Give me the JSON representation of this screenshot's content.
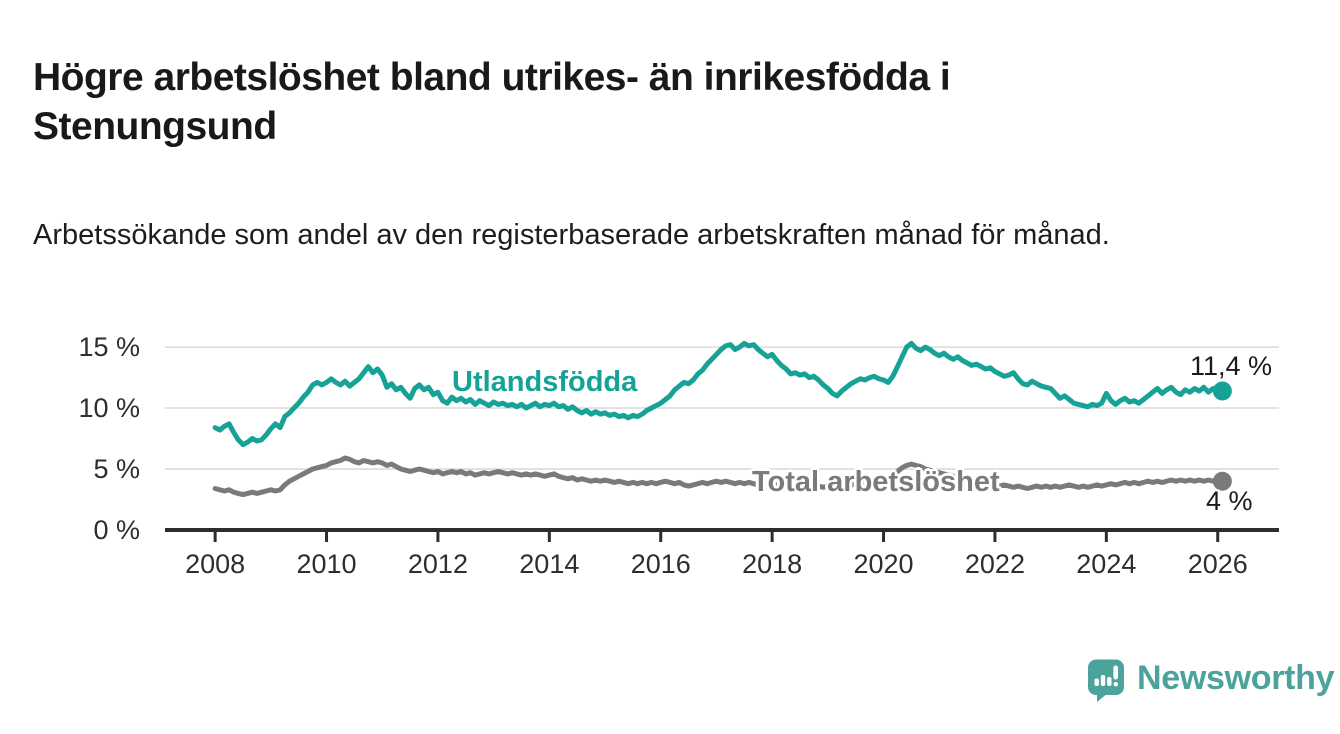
{
  "page": {
    "background": "#ffffff"
  },
  "header": {
    "title": "Högre arbetslöshet bland utrikes- än inrikesfödda i Stenungsund",
    "subtitle": "Arbetssökande som andel av den registerbaserade arbetskraften månad för månad."
  },
  "chart_data": {
    "type": "line",
    "title": "Högre arbetslöshet bland utrikes- än inrikesfödda i Stenungsund",
    "subtitle": "Arbetssökande som andel av den registerbaserade arbetskraften månad för månad.",
    "grid": "horizontal",
    "legend": "inline-series-labels",
    "frequency": "monthly",
    "x_start": 2008.0,
    "x_step": 0.0833333,
    "x_axis": {
      "ticks": [
        2008,
        2010,
        2012,
        2014,
        2016,
        2018,
        2020,
        2022,
        2024,
        2026
      ],
      "range": [
        2007.1,
        2027.1
      ]
    },
    "y_axis": {
      "unit": "%",
      "tick_values": [
        0,
        5,
        10,
        15
      ],
      "tick_labels": [
        "0 %",
        "5 %",
        "10 %",
        "15 %"
      ],
      "range": [
        0,
        16.4
      ]
    },
    "series": [
      {
        "name": "Utlandsfödda",
        "color": "#16a296",
        "end_value": 11.4,
        "end_label": "11,4 %",
        "values": [
          8.4,
          8.2,
          8.5,
          8.7,
          8.0,
          7.4,
          7.0,
          7.2,
          7.5,
          7.3,
          7.4,
          7.8,
          8.3,
          8.7,
          8.4,
          9.3,
          9.6,
          10.0,
          10.4,
          10.9,
          11.3,
          11.9,
          12.1,
          11.9,
          12.1,
          12.4,
          12.1,
          11.9,
          12.2,
          11.8,
          12.1,
          12.4,
          12.9,
          13.4,
          12.9,
          13.2,
          12.7,
          11.7,
          12.0,
          11.5,
          11.7,
          11.2,
          10.8,
          11.6,
          11.9,
          11.5,
          11.7,
          11.1,
          11.3,
          10.6,
          10.4,
          10.9,
          10.6,
          10.8,
          10.5,
          10.7,
          10.3,
          10.6,
          10.4,
          10.2,
          10.5,
          10.3,
          10.4,
          10.2,
          10.3,
          10.1,
          10.3,
          10.0,
          10.2,
          10.4,
          10.1,
          10.3,
          10.2,
          10.4,
          10.1,
          10.2,
          9.9,
          10.1,
          9.8,
          9.6,
          9.8,
          9.5,
          9.7,
          9.5,
          9.6,
          9.4,
          9.5,
          9.3,
          9.4,
          9.2,
          9.4,
          9.3,
          9.5,
          9.8,
          10.0,
          10.2,
          10.4,
          10.7,
          11.0,
          11.5,
          11.8,
          12.1,
          12.0,
          12.3,
          12.8,
          13.1,
          13.6,
          14.0,
          14.4,
          14.8,
          15.1,
          15.2,
          14.8,
          15.0,
          15.3,
          15.1,
          15.2,
          14.8,
          14.5,
          14.2,
          14.4,
          13.9,
          13.5,
          13.2,
          12.8,
          12.9,
          12.7,
          12.8,
          12.5,
          12.6,
          12.3,
          11.9,
          11.6,
          11.2,
          11.0,
          11.4,
          11.7,
          12.0,
          12.2,
          12.4,
          12.3,
          12.5,
          12.6,
          12.4,
          12.3,
          12.1,
          12.6,
          13.4,
          14.2,
          15.0,
          15.3,
          14.9,
          14.7,
          15.0,
          14.8,
          14.5,
          14.3,
          14.5,
          14.2,
          14.0,
          14.2,
          13.9,
          13.7,
          13.5,
          13.6,
          13.4,
          13.2,
          13.3,
          13.0,
          12.8,
          12.6,
          12.7,
          12.9,
          12.4,
          12.0,
          11.9,
          12.2,
          12.0,
          11.8,
          11.7,
          11.6,
          11.2,
          10.8,
          11.0,
          10.7,
          10.4,
          10.3,
          10.2,
          10.1,
          10.3,
          10.2,
          10.4,
          11.2,
          10.6,
          10.3,
          10.6,
          10.8,
          10.5,
          10.6,
          10.4,
          10.7,
          11.0,
          11.3,
          11.6,
          11.2,
          11.5,
          11.7,
          11.3,
          11.1,
          11.5,
          11.3,
          11.6,
          11.4,
          11.7,
          11.3,
          11.6,
          11.5,
          11.4
        ]
      },
      {
        "name": "Total arbetslöshet",
        "color": "#7a7a7a",
        "end_value": 4.0,
        "end_label": "4 %",
        "values": [
          3.4,
          3.3,
          3.2,
          3.3,
          3.1,
          3.0,
          2.9,
          3.0,
          3.1,
          3.0,
          3.1,
          3.2,
          3.3,
          3.2,
          3.3,
          3.7,
          4.0,
          4.2,
          4.4,
          4.6,
          4.8,
          5.0,
          5.1,
          5.2,
          5.3,
          5.5,
          5.6,
          5.7,
          5.9,
          5.8,
          5.6,
          5.5,
          5.7,
          5.6,
          5.5,
          5.6,
          5.5,
          5.3,
          5.4,
          5.2,
          5.0,
          4.9,
          4.8,
          4.9,
          5.0,
          4.9,
          4.8,
          4.7,
          4.8,
          4.6,
          4.7,
          4.8,
          4.7,
          4.8,
          4.6,
          4.7,
          4.5,
          4.6,
          4.7,
          4.6,
          4.7,
          4.8,
          4.7,
          4.6,
          4.7,
          4.6,
          4.5,
          4.6,
          4.5,
          4.6,
          4.5,
          4.4,
          4.5,
          4.6,
          4.4,
          4.3,
          4.2,
          4.3,
          4.1,
          4.2,
          4.1,
          4.0,
          4.1,
          4.0,
          4.1,
          4.0,
          3.9,
          4.0,
          3.9,
          3.8,
          3.9,
          3.8,
          3.9,
          3.8,
          3.9,
          3.8,
          3.9,
          4.0,
          3.9,
          3.8,
          3.9,
          3.7,
          3.6,
          3.7,
          3.8,
          3.9,
          3.8,
          3.9,
          4.0,
          3.9,
          4.0,
          3.9,
          3.8,
          3.9,
          3.8,
          3.9,
          3.8,
          3.7,
          3.8,
          3.7,
          3.8,
          3.7,
          3.8,
          3.7,
          3.6,
          3.7,
          3.8,
          3.7,
          3.6,
          3.7,
          3.6,
          3.5,
          3.6,
          3.5,
          3.6,
          3.7,
          3.6,
          3.7,
          3.8,
          3.7,
          3.8,
          3.7,
          3.8,
          3.9,
          3.8,
          3.9,
          4.2,
          4.8,
          5.1,
          5.3,
          5.4,
          5.3,
          5.2,
          5.0,
          4.9,
          4.8,
          4.7,
          4.6,
          4.5,
          4.4,
          4.3,
          4.2,
          4.3,
          4.2,
          4.1,
          4.0,
          3.9,
          3.8,
          3.7,
          3.6,
          3.7,
          3.6,
          3.5,
          3.6,
          3.5,
          3.4,
          3.5,
          3.6,
          3.5,
          3.6,
          3.5,
          3.6,
          3.5,
          3.6,
          3.7,
          3.6,
          3.5,
          3.6,
          3.5,
          3.6,
          3.7,
          3.6,
          3.7,
          3.8,
          3.7,
          3.8,
          3.9,
          3.8,
          3.9,
          3.8,
          3.9,
          4.0,
          3.9,
          4.0,
          3.9,
          4.0,
          4.1,
          4.0,
          4.1,
          4.0,
          4.1,
          4.0,
          4.1,
          4.0,
          4.1,
          4.0,
          4.1,
          4.0
        ]
      }
    ],
    "style": {
      "grid_color": "#d9d9d9",
      "axis_color": "#2d2d2d",
      "tick_label_color": "#2e2e2e"
    }
  },
  "branding": {
    "logo_text": "Newsworthy",
    "logo_icon": "bar-chart-speech-bubble-icon",
    "logo_color": "#4ca39b"
  }
}
